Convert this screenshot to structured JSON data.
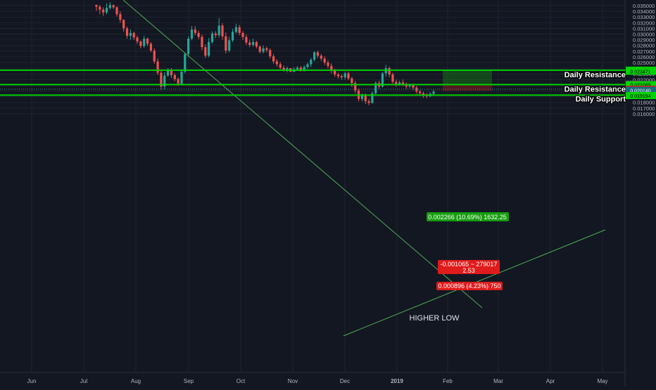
{
  "colors": {
    "background": "#131722",
    "grid": "#1f2330",
    "up": "#26a69a",
    "down": "#ef5350",
    "level_line": "#00d300",
    "trendline": "#4caf50",
    "axis_text": "#b2b5be",
    "target_box": "#169d0f",
    "stop_box": "#e01b1b",
    "current_price_line": "#4a90a4"
  },
  "chart_data": {
    "type": "candlestick",
    "title": "",
    "xlabel": "",
    "ylabel": "",
    "ylim": [
      0.0155,
      0.0355
    ],
    "x_ticks": [
      "Jun",
      "Jul",
      "Aug",
      "Sep",
      "Oct",
      "Nov",
      "Dec",
      "2019",
      "Feb",
      "Mar",
      "Apr",
      "May"
    ],
    "y_ticks": [
      "0.035000",
      "0.034000",
      "0.033000",
      "0.032000",
      "0.031000",
      "0.030000",
      "0.029000",
      "0.028000",
      "0.027000",
      "0.026000",
      "0.025000",
      "0.024000",
      "0.023000",
      "0.022000",
      "0.021000",
      "0.020000",
      "0.019000",
      "0.018000",
      "0.017000",
      "0.016000"
    ],
    "candles_close": [
      0.0348,
      0.0343,
      0.0338,
      0.0346,
      0.0351,
      0.0347,
      0.0335,
      0.0325,
      0.031,
      0.0297,
      0.0302,
      0.0294,
      0.0287,
      0.0279,
      0.0292,
      0.0283,
      0.0271,
      0.0252,
      0.0232,
      0.0208,
      0.0227,
      0.0236,
      0.0228,
      0.0221,
      0.0213,
      0.0234,
      0.0265,
      0.0292,
      0.0308,
      0.0302,
      0.0295,
      0.0277,
      0.0262,
      0.0286,
      0.0301,
      0.0298,
      0.0315,
      0.0296,
      0.0271,
      0.0289,
      0.0304,
      0.0312,
      0.0302,
      0.0295,
      0.0285,
      0.0281,
      0.0286,
      0.0278,
      0.0269,
      0.0275,
      0.0272,
      0.0261,
      0.0252,
      0.0247,
      0.0241,
      0.0236,
      0.024,
      0.0234,
      0.0238,
      0.0241,
      0.0237,
      0.0242,
      0.0247,
      0.0255,
      0.0268,
      0.0262,
      0.0257,
      0.025,
      0.0244,
      0.0236,
      0.0229,
      0.0226,
      0.0224,
      0.0231,
      0.0222,
      0.0214,
      0.0201,
      0.0186,
      0.0193,
      0.0182,
      0.0179,
      0.0196,
      0.0214,
      0.0208,
      0.0231,
      0.024,
      0.0229,
      0.0216,
      0.0212,
      0.0215,
      0.0212,
      0.0208,
      0.021,
      0.0206,
      0.0199,
      0.0196,
      0.0193,
      0.0191,
      0.0195,
      0.0199
    ],
    "candles_high": [
      0.0352,
      0.0351,
      0.0347,
      0.0354,
      0.0356,
      0.0352,
      0.0349,
      0.034,
      0.0326,
      0.0313,
      0.0308,
      0.0304,
      0.0297,
      0.0289,
      0.0297,
      0.0294,
      0.0286,
      0.0275,
      0.0257,
      0.0237,
      0.0233,
      0.024,
      0.024,
      0.0231,
      0.0224,
      0.0238,
      0.0268,
      0.0296,
      0.0314,
      0.0314,
      0.0306,
      0.0299,
      0.0282,
      0.0293,
      0.0305,
      0.0305,
      0.0328,
      0.0319,
      0.0303,
      0.0295,
      0.0309,
      0.0318,
      0.0316,
      0.0305,
      0.0299,
      0.029,
      0.0292,
      0.0288,
      0.028,
      0.028,
      0.0278,
      0.0275,
      0.0265,
      0.0256,
      0.0251,
      0.0245,
      0.0243,
      0.024,
      0.0242,
      0.0244,
      0.0244,
      0.0245,
      0.025,
      0.0258,
      0.027,
      0.0271,
      0.0265,
      0.0261,
      0.0254,
      0.0248,
      0.0239,
      0.0232,
      0.0229,
      0.0234,
      0.0234,
      0.0225,
      0.0218,
      0.0204,
      0.0196,
      0.0196,
      0.0186,
      0.0199,
      0.0217,
      0.0218,
      0.0233,
      0.0246,
      0.0243,
      0.0232,
      0.022,
      0.0218,
      0.022,
      0.0215,
      0.0213,
      0.0213,
      0.0209,
      0.0202,
      0.0199,
      0.0196,
      0.0198,
      0.0202
    ],
    "candles_low": [
      0.0341,
      0.0335,
      0.0332,
      0.0335,
      0.0343,
      0.0344,
      0.0331,
      0.032,
      0.0304,
      0.0292,
      0.029,
      0.029,
      0.0283,
      0.0275,
      0.0276,
      0.0279,
      0.0268,
      0.0248,
      0.0228,
      0.0202,
      0.0203,
      0.0225,
      0.0223,
      0.0217,
      0.0209,
      0.0211,
      0.0231,
      0.026,
      0.0289,
      0.0298,
      0.0291,
      0.0272,
      0.0258,
      0.0259,
      0.0283,
      0.0293,
      0.0294,
      0.029,
      0.0266,
      0.0268,
      0.0286,
      0.0301,
      0.0298,
      0.029,
      0.0281,
      0.0277,
      0.0278,
      0.0275,
      0.0266,
      0.0266,
      0.0268,
      0.0257,
      0.0248,
      0.0243,
      0.0238,
      0.0234,
      0.0233,
      0.0233,
      0.0233,
      0.0236,
      0.0234,
      0.0234,
      0.0239,
      0.0242,
      0.0252,
      0.0258,
      0.0253,
      0.0246,
      0.024,
      0.0231,
      0.0225,
      0.0222,
      0.022,
      0.022,
      0.0219,
      0.0207,
      0.0196,
      0.0182,
      0.0182,
      0.0177,
      0.0175,
      0.0178,
      0.0193,
      0.0204,
      0.0206,
      0.0225,
      0.0224,
      0.0213,
      0.0208,
      0.0209,
      0.0209,
      0.0204,
      0.0205,
      0.0202,
      0.0195,
      0.0192,
      0.0188,
      0.0187,
      0.0189,
      0.0193
    ],
    "levels": [
      {
        "label": "Daily Resistance",
        "value": 0.02365
      },
      {
        "label": "Daily Resistance",
        "value": 0.02112
      },
      {
        "label": "Daily Support",
        "value": 0.01928
      }
    ],
    "annotations": [
      {
        "text": "HIGHER LOW"
      }
    ],
    "price_tags": [
      "0.023668",
      "0.023471",
      "0.021205",
      "0.021089",
      "0.020309",
      "0.020140",
      "0.019194"
    ],
    "position": {
      "target_text": "0.002266 (10.69%) 1632.25",
      "stop_text_1": "-0.001065 ~ 279017",
      "stop_text_2": "2.53",
      "entry_text": "0.000896 (4.23%) 750"
    }
  }
}
